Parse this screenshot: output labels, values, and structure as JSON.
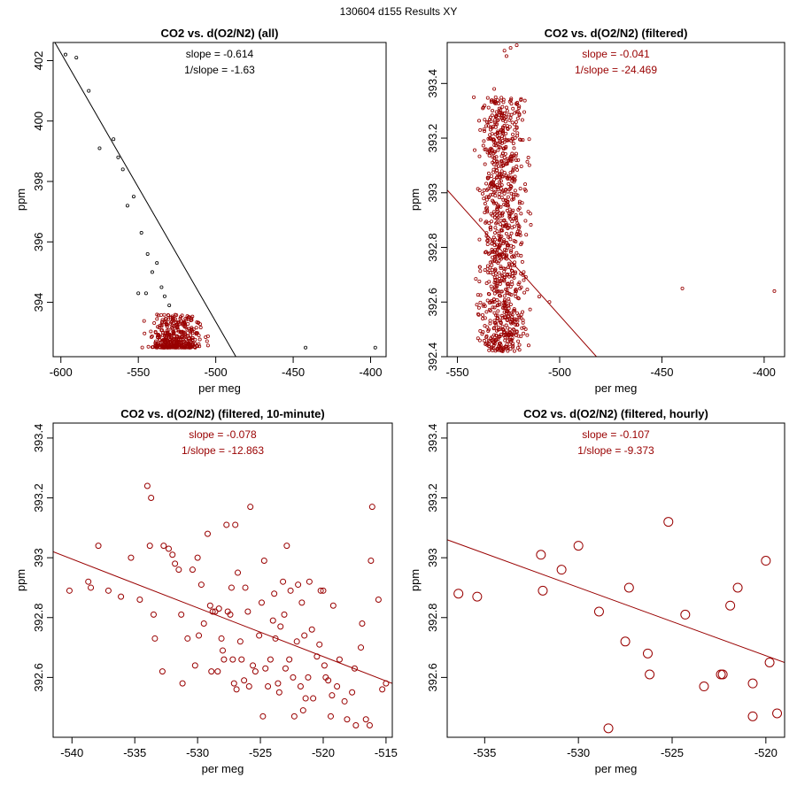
{
  "figure": {
    "title": "130604   d155   Results XY",
    "colors": {
      "black": "#000000",
      "red": "#990000"
    }
  },
  "chart_data": [
    {
      "type": "scatter",
      "title": "CO2 vs. d(O2/N2) (all)",
      "xlabel": "per meg",
      "ylabel": "ppm",
      "xlim": [
        -605,
        -390
      ],
      "ylim": [
        392.2,
        402.6
      ],
      "xticks": [
        -600,
        -550,
        -500,
        -450,
        -400
      ],
      "yticks": [
        394,
        396,
        398,
        400,
        402
      ],
      "color": "#000000",
      "annotations": [
        "slope = -0.614",
        "1/slope = -1.63"
      ],
      "fit_line": {
        "x": [
          -605,
          -487
        ],
        "y": [
          402.7,
          392.2
        ]
      },
      "points": [
        [
          -597,
          402.2
        ],
        [
          -590,
          402.1
        ],
        [
          -582,
          401.0
        ],
        [
          -575,
          399.1
        ],
        [
          -566,
          399.4
        ],
        [
          -563,
          398.8
        ],
        [
          -560,
          398.4
        ],
        [
          -557,
          397.2
        ],
        [
          -553,
          397.5
        ],
        [
          -548,
          396.3
        ],
        [
          -544,
          395.6
        ],
        [
          -541,
          395.0
        ],
        [
          -538,
          395.3
        ],
        [
          -535,
          394.5
        ],
        [
          -533,
          394.2
        ],
        [
          -530,
          393.9
        ],
        [
          -545,
          394.3
        ],
        [
          -550,
          394.3
        ],
        [
          -442,
          392.5
        ],
        [
          -397,
          392.5
        ]
      ],
      "cluster": {
        "seed": 11,
        "n": 400,
        "x_range": [
          -552,
          -505
        ],
        "y_range": [
          392.5,
          393.6
        ],
        "center_x": -526,
        "color": "#990000"
      }
    },
    {
      "type": "scatter",
      "title": "CO2 vs. d(O2/N2) (filtered)",
      "xlabel": "per meg",
      "ylabel": "ppm",
      "xlim": [
        -555,
        -390
      ],
      "ylim": [
        392.4,
        393.55
      ],
      "xticks": [
        -550,
        -500,
        -450,
        -400
      ],
      "yticks": [
        392.4,
        392.6,
        392.8,
        393.0,
        393.2,
        393.4
      ],
      "color": "#990000",
      "annotations": [
        "slope = -0.041",
        "1/slope = -24.469"
      ],
      "fit_line": {
        "x": [
          -555,
          -482
        ],
        "y": [
          393.01,
          392.4
        ]
      },
      "points": [
        [
          -527,
          393.52
        ],
        [
          -524,
          393.53
        ],
        [
          -521,
          393.54
        ],
        [
          -526,
          393.5
        ],
        [
          -532,
          393.38
        ],
        [
          -520,
          393.31
        ],
        [
          -522,
          393.25
        ],
        [
          -531,
          393.28
        ],
        [
          -440,
          392.65
        ],
        [
          -395,
          392.64
        ],
        [
          -510,
          392.62
        ],
        [
          -505,
          392.6
        ]
      ],
      "cluster": {
        "seed": 23,
        "n": 900,
        "x_range": [
          -545,
          -513
        ],
        "y_range": [
          392.42,
          393.35
        ],
        "center_x": -528,
        "color": "#990000"
      }
    },
    {
      "type": "scatter",
      "title": "CO2 vs. d(O2/N2) (filtered, 10-minute)",
      "xlabel": "per meg",
      "ylabel": "ppm",
      "xlim": [
        -541.5,
        -514.5
      ],
      "ylim": [
        392.4,
        393.45
      ],
      "xticks": [
        -540,
        -535,
        -530,
        -525,
        -520,
        -515
      ],
      "yticks": [
        392.6,
        392.8,
        393.0,
        393.2,
        393.4
      ],
      "color": "#990000",
      "annotations": [
        "slope = -0.078",
        "1/slope = -12.863"
      ],
      "fit_line": {
        "x": [
          -541.5,
          -514.5
        ],
        "y": [
          393.02,
          392.58
        ]
      },
      "points": [
        [
          -540.2,
          392.89
        ],
        [
          -538.7,
          392.92
        ],
        [
          -538.5,
          392.9
        ],
        [
          -537.9,
          393.04
        ],
        [
          -537.1,
          392.89
        ],
        [
          -536.1,
          392.87
        ],
        [
          -535.3,
          393.0
        ],
        [
          -534.6,
          392.86
        ],
        [
          -534.0,
          393.24
        ],
        [
          -533.7,
          393.2
        ],
        [
          -533.8,
          393.04
        ],
        [
          -533.5,
          392.81
        ],
        [
          -533.4,
          392.73
        ],
        [
          -532.8,
          392.62
        ],
        [
          -532.7,
          393.04
        ],
        [
          -532.3,
          393.03
        ],
        [
          -532.0,
          393.01
        ],
        [
          -531.8,
          392.98
        ],
        [
          -531.5,
          392.96
        ],
        [
          -531.3,
          392.81
        ],
        [
          -531.2,
          392.58
        ],
        [
          -530.8,
          392.73
        ],
        [
          -530.4,
          392.96
        ],
        [
          -530.0,
          393.0
        ],
        [
          -529.9,
          392.74
        ],
        [
          -529.7,
          392.91
        ],
        [
          -529.5,
          392.78
        ],
        [
          -529.2,
          393.08
        ],
        [
          -529.0,
          392.84
        ],
        [
          -528.9,
          392.62
        ],
        [
          -528.8,
          392.82
        ],
        [
          -528.6,
          392.82
        ],
        [
          -528.3,
          392.83
        ],
        [
          -528.1,
          392.73
        ],
        [
          -528.0,
          392.69
        ],
        [
          -527.9,
          392.66
        ],
        [
          -527.7,
          393.11
        ],
        [
          -527.6,
          392.82
        ],
        [
          -527.4,
          392.81
        ],
        [
          -527.3,
          392.9
        ],
        [
          -527.2,
          392.66
        ],
        [
          -527.1,
          392.58
        ],
        [
          -527.0,
          393.11
        ],
        [
          -526.8,
          392.95
        ],
        [
          -526.6,
          392.72
        ],
        [
          -526.5,
          392.66
        ],
        [
          -526.3,
          392.59
        ],
        [
          -526.2,
          392.9
        ],
        [
          -526.0,
          392.82
        ],
        [
          -525.9,
          392.57
        ],
        [
          -525.8,
          393.17
        ],
        [
          -525.6,
          392.64
        ],
        [
          -525.4,
          392.62
        ],
        [
          -525.1,
          392.74
        ],
        [
          -524.9,
          392.85
        ],
        [
          -524.7,
          392.99
        ],
        [
          -524.6,
          392.63
        ],
        [
          -524.4,
          392.57
        ],
        [
          -524.2,
          392.66
        ],
        [
          -524.0,
          392.79
        ],
        [
          -523.9,
          392.88
        ],
        [
          -523.8,
          392.73
        ],
        [
          -523.6,
          392.58
        ],
        [
          -523.5,
          392.55
        ],
        [
          -523.2,
          392.92
        ],
        [
          -523.1,
          392.81
        ],
        [
          -523.0,
          392.63
        ],
        [
          -522.9,
          393.04
        ],
        [
          -522.7,
          392.66
        ],
        [
          -522.6,
          392.89
        ],
        [
          -522.4,
          392.6
        ],
        [
          -522.1,
          392.72
        ],
        [
          -522.0,
          392.91
        ],
        [
          -521.8,
          392.57
        ],
        [
          -521.7,
          392.85
        ],
        [
          -521.5,
          392.74
        ],
        [
          -521.4,
          392.53
        ],
        [
          -521.2,
          392.6
        ],
        [
          -521.1,
          392.92
        ],
        [
          -520.9,
          392.76
        ],
        [
          -520.8,
          392.53
        ],
        [
          -520.5,
          392.67
        ],
        [
          -520.3,
          392.71
        ],
        [
          -520.2,
          392.89
        ],
        [
          -520.0,
          392.89
        ],
        [
          -519.8,
          392.6
        ],
        [
          -519.6,
          392.59
        ],
        [
          -519.4,
          392.47
        ],
        [
          -519.3,
          392.54
        ],
        [
          -519.2,
          392.84
        ],
        [
          -518.7,
          392.66
        ],
        [
          -518.3,
          392.52
        ],
        [
          -518.1,
          392.46
        ],
        [
          -517.7,
          392.55
        ],
        [
          -517.4,
          392.44
        ],
        [
          -517.5,
          392.63
        ],
        [
          -516.9,
          392.78
        ],
        [
          -516.6,
          392.46
        ],
        [
          -516.3,
          392.44
        ],
        [
          -516.2,
          392.99
        ],
        [
          -516.1,
          393.17
        ],
        [
          -515.6,
          392.86
        ],
        [
          -515.3,
          392.56
        ],
        [
          -515.0,
          392.58
        ],
        [
          -526.9,
          392.56
        ],
        [
          -524.8,
          392.47
        ],
        [
          -528.4,
          392.62
        ],
        [
          -523.4,
          392.77
        ],
        [
          -522.3,
          392.47
        ],
        [
          -521.6,
          392.49
        ],
        [
          -530.2,
          392.64
        ],
        [
          -519.9,
          392.64
        ],
        [
          -518.9,
          392.57
        ],
        [
          -517.0,
          392.7
        ]
      ]
    },
    {
      "type": "scatter",
      "title": "CO2 vs. d(O2/N2) (filtered, hourly)",
      "xlabel": "per meg",
      "ylabel": "ppm",
      "xlim": [
        -537,
        -519
      ],
      "ylim": [
        392.4,
        393.45
      ],
      "xticks": [
        -535,
        -530,
        -525,
        -520
      ],
      "yticks": [
        392.6,
        392.8,
        393.0,
        393.2,
        393.4
      ],
      "color": "#990000",
      "annotations": [
        "slope = -0.107",
        "1/slope = -9.373"
      ],
      "fit_line": {
        "x": [
          -537,
          -519
        ],
        "y": [
          393.06,
          392.65
        ]
      },
      "points": [
        [
          -536.4,
          392.88
        ],
        [
          -535.4,
          392.87
        ],
        [
          -532.0,
          393.01
        ],
        [
          -531.9,
          392.89
        ],
        [
          -530.9,
          392.96
        ],
        [
          -530.0,
          393.04
        ],
        [
          -528.9,
          392.82
        ],
        [
          -528.4,
          392.43
        ],
        [
          -527.3,
          392.9
        ],
        [
          -527.5,
          392.72
        ],
        [
          -526.3,
          392.68
        ],
        [
          -526.2,
          392.61
        ],
        [
          -525.2,
          393.12
        ],
        [
          -524.3,
          392.81
        ],
        [
          -523.3,
          392.57
        ],
        [
          -522.3,
          392.61
        ],
        [
          -522.4,
          392.61
        ],
        [
          -521.9,
          392.84
        ],
        [
          -521.5,
          392.9
        ],
        [
          -520.7,
          392.58
        ],
        [
          -520.7,
          392.47
        ],
        [
          -520.0,
          392.99
        ],
        [
          -519.8,
          392.65
        ],
        [
          -519.4,
          392.48
        ]
      ]
    }
  ]
}
